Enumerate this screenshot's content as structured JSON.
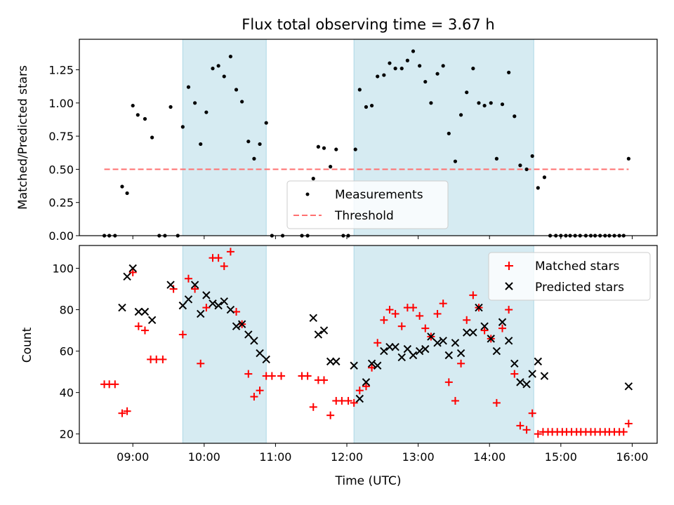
{
  "chart_data": [
    {
      "type": "scatter",
      "title": "Flux total observing time = 3.67 h",
      "xlabel": "",
      "ylabel": "Matched/Predicted stars",
      "xlim": [
        8.25,
        16.35
      ],
      "ylim": [
        0,
        1.48
      ],
      "yticks": [
        0.0,
        0.25,
        0.5,
        0.75,
        1.0,
        1.25
      ],
      "ytick_labels": [
        "0.00",
        "0.25",
        "0.50",
        "0.75",
        "1.00",
        "1.25"
      ],
      "xticks": [
        9,
        10,
        11,
        12,
        13,
        14,
        15,
        16
      ],
      "shaded_spans": [
        [
          9.7,
          10.87
        ],
        [
          12.1,
          14.62
        ]
      ],
      "threshold": {
        "x": [
          8.6,
          15.95
        ],
        "y": 0.5,
        "color": "#ff7070"
      },
      "legend": {
        "placement": "lower-center",
        "entries": [
          "Measurements",
          "Threshold"
        ]
      },
      "series": [
        {
          "name": "Measurements",
          "color": "#000000",
          "marker": "dot",
          "points": [
            [
              8.6,
              0
            ],
            [
              8.67,
              0
            ],
            [
              8.75,
              0
            ],
            [
              8.85,
              0.37
            ],
            [
              8.92,
              0.32
            ],
            [
              9.0,
              0.98
            ],
            [
              9.07,
              0.91
            ],
            [
              9.17,
              0.88
            ],
            [
              9.27,
              0.74
            ],
            [
              9.37,
              0
            ],
            [
              9.45,
              0
            ],
            [
              9.53,
              0.97
            ],
            [
              9.63,
              0
            ],
            [
              9.7,
              0.82
            ],
            [
              9.78,
              1.12
            ],
            [
              9.87,
              1.0
            ],
            [
              9.95,
              0.69
            ],
            [
              10.03,
              0.93
            ],
            [
              10.12,
              1.26
            ],
            [
              10.2,
              1.28
            ],
            [
              10.28,
              1.2
            ],
            [
              10.37,
              1.35
            ],
            [
              10.45,
              1.1
            ],
            [
              10.53,
              1.01
            ],
            [
              10.62,
              0.71
            ],
            [
              10.7,
              0.58
            ],
            [
              10.78,
              0.69
            ],
            [
              10.87,
              0.85
            ],
            [
              10.95,
              0
            ],
            [
              11.1,
              0
            ],
            [
              11.37,
              0
            ],
            [
              11.45,
              0
            ],
            [
              11.53,
              0.43
            ],
            [
              11.6,
              0.67
            ],
            [
              11.68,
              0.66
            ],
            [
              11.77,
              0.52
            ],
            [
              11.85,
              0.65
            ],
            [
              11.95,
              0
            ],
            [
              12.02,
              0
            ],
            [
              12.12,
              0.65
            ],
            [
              12.18,
              1.1
            ],
            [
              12.27,
              0.97
            ],
            [
              12.35,
              0.98
            ],
            [
              12.43,
              1.2
            ],
            [
              12.52,
              1.21
            ],
            [
              12.6,
              1.3
            ],
            [
              12.68,
              1.26
            ],
            [
              12.77,
              1.26
            ],
            [
              12.85,
              1.32
            ],
            [
              12.93,
              1.39
            ],
            [
              13.02,
              1.28
            ],
            [
              13.1,
              1.16
            ],
            [
              13.18,
              1.0
            ],
            [
              13.27,
              1.22
            ],
            [
              13.35,
              1.28
            ],
            [
              13.43,
              0.77
            ],
            [
              13.52,
              0.56
            ],
            [
              13.6,
              0.91
            ],
            [
              13.68,
              1.08
            ],
            [
              13.77,
              1.26
            ],
            [
              13.85,
              1.0
            ],
            [
              13.93,
              0.98
            ],
            [
              14.02,
              1.0
            ],
            [
              14.1,
              0.58
            ],
            [
              14.18,
              0.99
            ],
            [
              14.27,
              1.23
            ],
            [
              14.35,
              0.9
            ],
            [
              14.43,
              0.53
            ],
            [
              14.52,
              0.5
            ],
            [
              14.6,
              0.6
            ],
            [
              14.68,
              0.36
            ],
            [
              14.77,
              0.44
            ],
            [
              14.85,
              0
            ],
            [
              14.93,
              0
            ],
            [
              15.0,
              0
            ],
            [
              15.07,
              0
            ],
            [
              15.13,
              0
            ],
            [
              15.2,
              0
            ],
            [
              15.27,
              0
            ],
            [
              15.35,
              0
            ],
            [
              15.42,
              0
            ],
            [
              15.48,
              0
            ],
            [
              15.55,
              0
            ],
            [
              15.62,
              0
            ],
            [
              15.68,
              0
            ],
            [
              15.75,
              0
            ],
            [
              15.82,
              0
            ],
            [
              15.88,
              0
            ],
            [
              15.95,
              0.58
            ]
          ]
        }
      ]
    },
    {
      "type": "scatter",
      "title": "",
      "xlabel": "Time (UTC)",
      "ylabel": "Count",
      "xlim": [
        8.25,
        16.35
      ],
      "ylim": [
        15.5,
        111
      ],
      "yticks": [
        20,
        40,
        60,
        80,
        100
      ],
      "ytick_labels": [
        "20",
        "40",
        "60",
        "80",
        "100"
      ],
      "xticks": [
        9,
        10,
        11,
        12,
        13,
        14,
        15,
        16
      ],
      "xtick_labels": [
        "09:00",
        "10:00",
        "11:00",
        "12:00",
        "13:00",
        "14:00",
        "15:00",
        "16:00"
      ],
      "shaded_spans": [
        [
          9.7,
          10.87
        ],
        [
          12.1,
          14.62
        ]
      ],
      "legend": {
        "placement": "upper-right",
        "entries": [
          "Matched stars",
          "Predicted stars"
        ]
      },
      "series": [
        {
          "name": "Matched stars",
          "color": "#ff0000",
          "marker": "plus",
          "points": [
            [
              8.6,
              44
            ],
            [
              8.67,
              44
            ],
            [
              8.75,
              44
            ],
            [
              8.85,
              30
            ],
            [
              8.92,
              31
            ],
            [
              9.0,
              98
            ],
            [
              9.08,
              72
            ],
            [
              9.17,
              70
            ],
            [
              9.25,
              56
            ],
            [
              9.33,
              56
            ],
            [
              9.42,
              56
            ],
            [
              9.57,
              90
            ],
            [
              9.7,
              68
            ],
            [
              9.78,
              95
            ],
            [
              9.87,
              90
            ],
            [
              9.95,
              54
            ],
            [
              10.03,
              81
            ],
            [
              10.12,
              105
            ],
            [
              10.2,
              105
            ],
            [
              10.28,
              101
            ],
            [
              10.37,
              108
            ],
            [
              10.45,
              79
            ],
            [
              10.53,
              73
            ],
            [
              10.62,
              49
            ],
            [
              10.7,
              38
            ],
            [
              10.78,
              41
            ],
            [
              10.87,
              48
            ],
            [
              10.95,
              48
            ],
            [
              11.08,
              48
            ],
            [
              11.37,
              48
            ],
            [
              11.45,
              48
            ],
            [
              11.53,
              33
            ],
            [
              11.6,
              46
            ],
            [
              11.68,
              46
            ],
            [
              11.77,
              29
            ],
            [
              11.85,
              36
            ],
            [
              11.93,
              36
            ],
            [
              12.02,
              36
            ],
            [
              12.1,
              35
            ],
            [
              12.18,
              41
            ],
            [
              12.27,
              43
            ],
            [
              12.35,
              52
            ],
            [
              12.43,
              64
            ],
            [
              12.52,
              75
            ],
            [
              12.6,
              80
            ],
            [
              12.68,
              78
            ],
            [
              12.77,
              72
            ],
            [
              12.85,
              81
            ],
            [
              12.93,
              81
            ],
            [
              13.02,
              77
            ],
            [
              13.1,
              71
            ],
            [
              13.18,
              67
            ],
            [
              13.27,
              78
            ],
            [
              13.35,
              83
            ],
            [
              13.43,
              45
            ],
            [
              13.52,
              36
            ],
            [
              13.6,
              54
            ],
            [
              13.68,
              75
            ],
            [
              13.77,
              87
            ],
            [
              13.85,
              81
            ],
            [
              13.93,
              70
            ],
            [
              14.02,
              66
            ],
            [
              14.1,
              35
            ],
            [
              14.18,
              71
            ],
            [
              14.27,
              80
            ],
            [
              14.35,
              49
            ],
            [
              14.43,
              24
            ],
            [
              14.52,
              22
            ],
            [
              14.6,
              30
            ],
            [
              14.68,
              20
            ],
            [
              14.75,
              21
            ],
            [
              14.82,
              21
            ],
            [
              14.88,
              21
            ],
            [
              14.95,
              21
            ],
            [
              15.02,
              21
            ],
            [
              15.08,
              21
            ],
            [
              15.15,
              21
            ],
            [
              15.22,
              21
            ],
            [
              15.28,
              21
            ],
            [
              15.35,
              21
            ],
            [
              15.42,
              21
            ],
            [
              15.48,
              21
            ],
            [
              15.55,
              21
            ],
            [
              15.62,
              21
            ],
            [
              15.68,
              21
            ],
            [
              15.75,
              21
            ],
            [
              15.82,
              21
            ],
            [
              15.88,
              21
            ],
            [
              15.95,
              25
            ]
          ]
        },
        {
          "name": "Predicted stars",
          "color": "#000000",
          "marker": "x",
          "points": [
            [
              8.85,
              81
            ],
            [
              8.92,
              96
            ],
            [
              9.0,
              100
            ],
            [
              9.08,
              79
            ],
            [
              9.17,
              79
            ],
            [
              9.27,
              75
            ],
            [
              9.53,
              92
            ],
            [
              9.7,
              82
            ],
            [
              9.78,
              85
            ],
            [
              9.87,
              92
            ],
            [
              9.95,
              78
            ],
            [
              10.03,
              87
            ],
            [
              10.12,
              83
            ],
            [
              10.2,
              82
            ],
            [
              10.28,
              84
            ],
            [
              10.37,
              80
            ],
            [
              10.45,
              72
            ],
            [
              10.53,
              73
            ],
            [
              10.62,
              68
            ],
            [
              10.7,
              65
            ],
            [
              10.78,
              59
            ],
            [
              10.87,
              56
            ],
            [
              11.53,
              76
            ],
            [
              11.6,
              68
            ],
            [
              11.68,
              70
            ],
            [
              11.77,
              55
            ],
            [
              11.85,
              55
            ],
            [
              12.1,
              53
            ],
            [
              12.18,
              37
            ],
            [
              12.27,
              45
            ],
            [
              12.35,
              54
            ],
            [
              12.43,
              53
            ],
            [
              12.52,
              60
            ],
            [
              12.6,
              62
            ],
            [
              12.68,
              62
            ],
            [
              12.77,
              57
            ],
            [
              12.85,
              61
            ],
            [
              12.93,
              58
            ],
            [
              13.02,
              60
            ],
            [
              13.1,
              61
            ],
            [
              13.18,
              67
            ],
            [
              13.27,
              64
            ],
            [
              13.35,
              65
            ],
            [
              13.43,
              58
            ],
            [
              13.52,
              64
            ],
            [
              13.6,
              59
            ],
            [
              13.68,
              69
            ],
            [
              13.77,
              69
            ],
            [
              13.85,
              81
            ],
            [
              13.93,
              72
            ],
            [
              14.02,
              66
            ],
            [
              14.1,
              60
            ],
            [
              14.18,
              74
            ],
            [
              14.27,
              65
            ],
            [
              14.35,
              54
            ],
            [
              14.43,
              45
            ],
            [
              14.52,
              44
            ],
            [
              14.6,
              49
            ],
            [
              14.68,
              55
            ],
            [
              14.77,
              48
            ],
            [
              15.95,
              43
            ]
          ]
        }
      ]
    }
  ]
}
